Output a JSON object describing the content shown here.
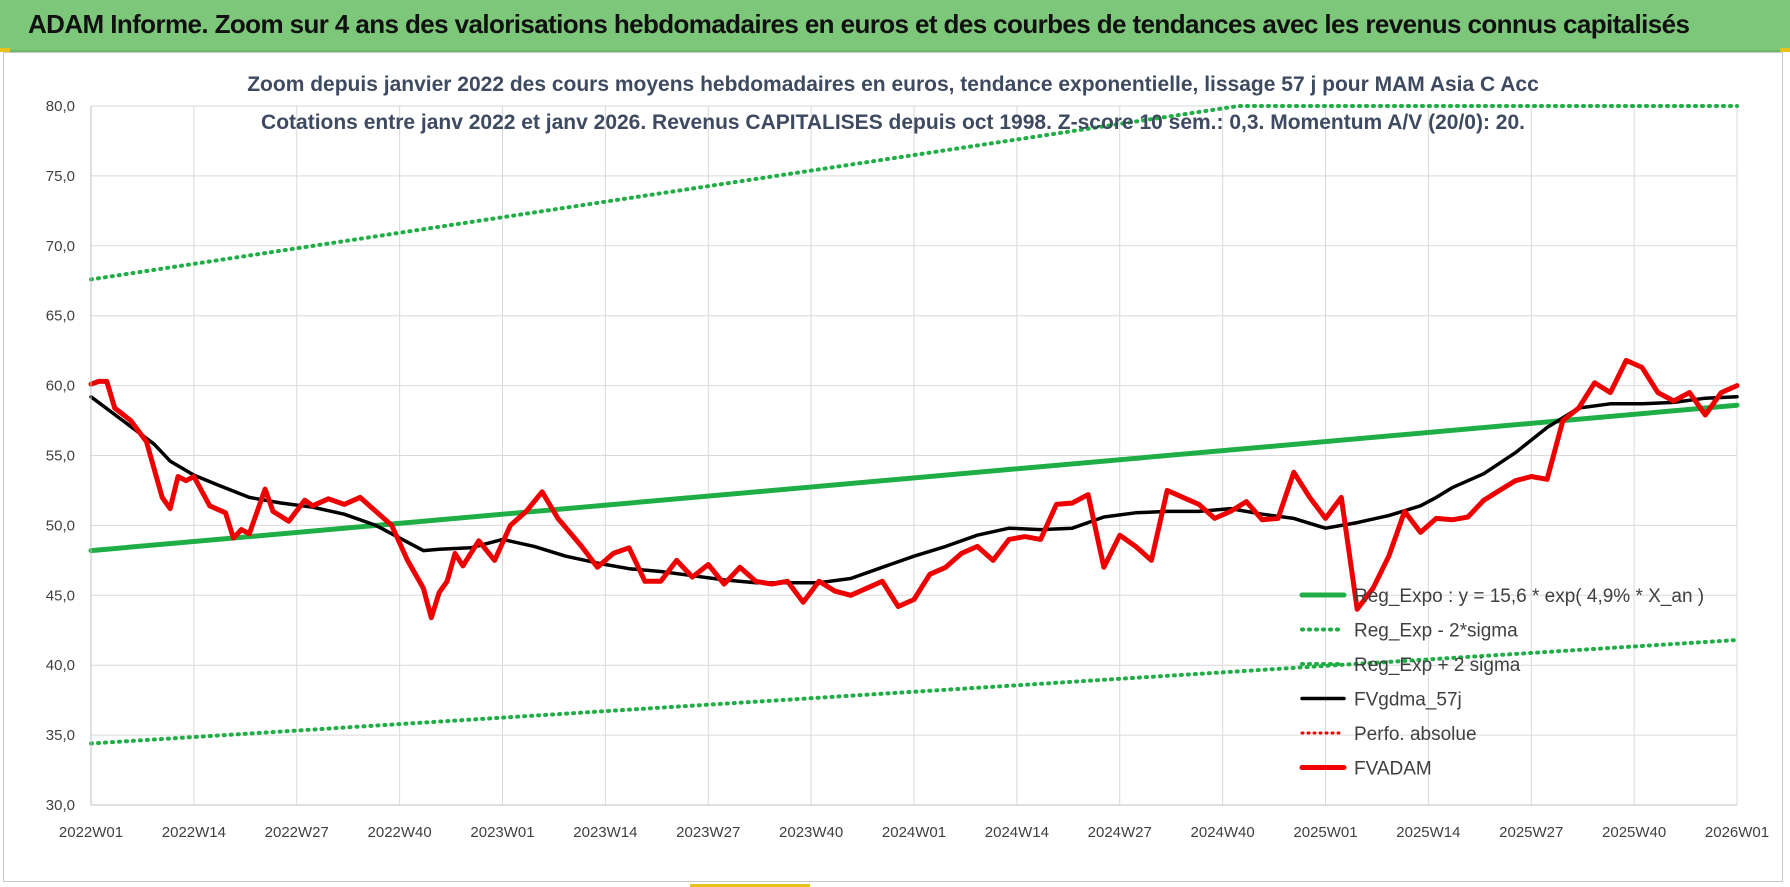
{
  "header": {
    "title": "ADAM Informe. Zoom sur 4 ans des valorisations hebdomadaires en euros et des courbes de tendances avec les revenus connus capitalisés"
  },
  "colors": {
    "header_bg": "#7dc77a",
    "trend": "#1fae45",
    "fvadam": "#ee0000",
    "fvgdma": "#000000",
    "perfo": "#ee0000",
    "grid": "#d9d9d9"
  },
  "chart_data": {
    "type": "line",
    "subtitle_lines": [
      "Zoom depuis janvier 2022 des cours moyens hebdomadaires en euros, tendance exponentielle, lissage 57 j pour MAM Asia C Acc",
      "Cotations entre janv 2022 et janv 2026. Revenus CAPITALISES depuis oct 1998. Z-score 10 sem.: 0,3. Momentum A/V (20/0): 20."
    ],
    "x_ticks": [
      "2022W01",
      "2022W14",
      "2022W27",
      "2022W40",
      "2023W01",
      "2023W14",
      "2023W27",
      "2023W40",
      "2024W01",
      "2024W14",
      "2024W27",
      "2024W40",
      "2025W01",
      "2025W14",
      "2025W27",
      "2025W40",
      "2026W01"
    ],
    "y_ticks": [
      "30,0",
      "35,0",
      "40,0",
      "45,0",
      "50,0",
      "55,0",
      "60,0",
      "65,0",
      "70,0",
      "75,0",
      "80,0"
    ],
    "ylim": [
      30,
      80
    ],
    "x_range_weeks": [
      0,
      208
    ],
    "grid": true,
    "legend_position": "bottom-right",
    "legend": [
      {
        "key": "reg_exp",
        "label": "Reg_Expo : y = 15,6 * exp( 4,9% *  X_an )"
      },
      {
        "key": "reg_minus",
        "label": "Reg_Exp - 2*sigma"
      },
      {
        "key": "reg_plus",
        "label": "Reg_Exp + 2 sigma"
      },
      {
        "key": "fvgdma",
        "label": "FVgdma_57j"
      },
      {
        "key": "perfo",
        "label": "Perfo. absolue"
      },
      {
        "key": "fvadam",
        "label": "FVADAM"
      }
    ],
    "series": {
      "reg_exp": {
        "x": [
          0,
          208
        ],
        "y": [
          48.2,
          58.6
        ]
      },
      "reg_minus": {
        "x": [
          0,
          208
        ],
        "y": [
          34.4,
          41.8
        ]
      },
      "reg_plus": {
        "x": [
          0,
          145,
          208
        ],
        "y": [
          67.6,
          80.0,
          80.0
        ]
      },
      "fvgdma": {
        "x": [
          0,
          4,
          8,
          10,
          13,
          16,
          20,
          24,
          28,
          32,
          36,
          40,
          42,
          44,
          48,
          52,
          56,
          60,
          64,
          68,
          72,
          76,
          80,
          84,
          88,
          92,
          96,
          100,
          104,
          108,
          112,
          116,
          120,
          124,
          128,
          132,
          136,
          140,
          144,
          148,
          152,
          156,
          160,
          164,
          168,
          170,
          172,
          176,
          180,
          184,
          188,
          192,
          196,
          200,
          204,
          208
        ],
        "y": [
          59.2,
          57.5,
          55.8,
          54.6,
          53.6,
          52.9,
          52.0,
          51.6,
          51.3,
          50.8,
          50.0,
          48.8,
          48.2,
          48.3,
          48.4,
          49.0,
          48.5,
          47.8,
          47.3,
          46.9,
          46.7,
          46.4,
          46.1,
          45.9,
          45.9,
          45.9,
          46.2,
          47.0,
          47.8,
          48.5,
          49.3,
          49.8,
          49.7,
          49.8,
          50.6,
          50.9,
          51.0,
          51.0,
          51.2,
          50.8,
          50.5,
          49.8,
          50.2,
          50.7,
          51.4,
          52.0,
          52.7,
          53.7,
          55.2,
          57.0,
          58.4,
          58.7,
          58.7,
          58.8,
          59.1,
          59.2
        ]
      },
      "fvadam": {
        "x": [
          0,
          1,
          2,
          3,
          5,
          7,
          9,
          10,
          11,
          12,
          13,
          15,
          17,
          18,
          19,
          20,
          22,
          23,
          25,
          27,
          28,
          30,
          32,
          34,
          36,
          38,
          40,
          42,
          43,
          44,
          45,
          46,
          47,
          49,
          51,
          53,
          55,
          57,
          59,
          62,
          64,
          66,
          68,
          70,
          72,
          74,
          76,
          78,
          80,
          82,
          84,
          86,
          88,
          90,
          92,
          94,
          96,
          98,
          100,
          102,
          104,
          106,
          108,
          110,
          112,
          114,
          116,
          118,
          120,
          122,
          124,
          126,
          128,
          130,
          132,
          134,
          136,
          138,
          140,
          142,
          144,
          146,
          148,
          150,
          152,
          154,
          156,
          158,
          160,
          162,
          164,
          166,
          168,
          170,
          172,
          174,
          176,
          178,
          180,
          182,
          184,
          186,
          188,
          190,
          192,
          194,
          196,
          198,
          200,
          202,
          204,
          206,
          208
        ],
        "y": [
          60.1,
          60.3,
          60.3,
          58.4,
          57.5,
          56.0,
          52.0,
          51.2,
          53.5,
          53.2,
          53.5,
          51.4,
          50.9,
          49.1,
          49.7,
          49.4,
          52.6,
          51.0,
          50.3,
          51.8,
          51.4,
          51.9,
          51.5,
          52.0,
          51.0,
          50.0,
          47.5,
          45.5,
          43.4,
          45.2,
          46.0,
          48.0,
          47.1,
          48.9,
          47.5,
          50.0,
          51.0,
          52.4,
          50.5,
          48.5,
          47.0,
          48.0,
          48.4,
          46.0,
          46.0,
          47.5,
          46.3,
          47.2,
          45.8,
          47.0,
          46.0,
          45.8,
          46.0,
          44.5,
          46.0,
          45.3,
          45.0,
          45.5,
          46.0,
          44.2,
          44.7,
          46.5,
          47.0,
          48.0,
          48.5,
          47.5,
          49.0,
          49.2,
          49.0,
          51.5,
          51.6,
          52.2,
          47.0,
          49.3,
          48.5,
          47.5,
          52.5,
          52.0,
          51.5,
          50.5,
          51.0,
          51.7,
          50.4,
          50.5,
          53.8,
          52.0,
          50.5,
          52.0,
          44.0,
          45.5,
          47.8,
          51.0,
          49.5,
          50.5,
          50.4,
          50.6,
          51.8,
          52.5,
          53.2,
          53.5,
          53.3,
          57.5,
          58.4,
          60.2,
          59.5,
          61.8,
          61.3,
          59.5,
          58.9,
          59.5,
          57.9,
          59.5,
          60.0
        ]
      },
      "perfo": {
        "x": [],
        "y": []
      }
    }
  }
}
